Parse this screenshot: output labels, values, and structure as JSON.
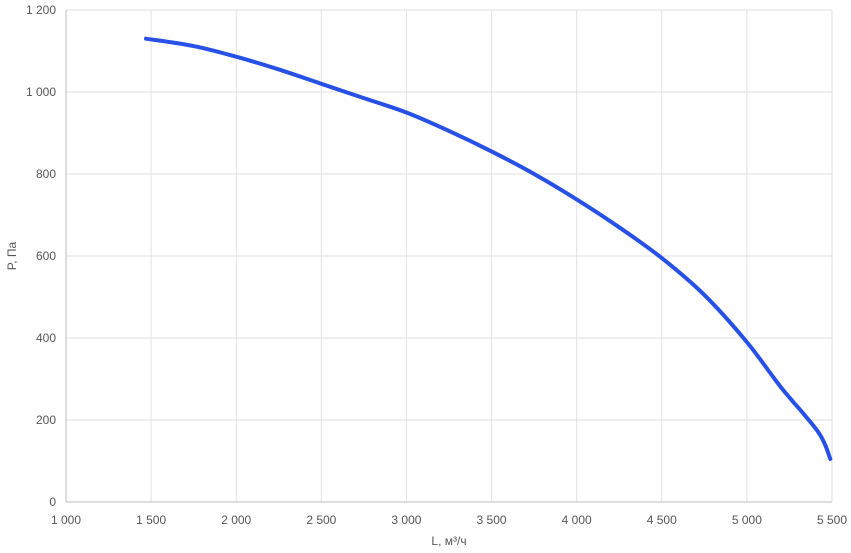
{
  "chart_data": {
    "type": "line",
    "title": "",
    "xlabel": "L, м³/ч",
    "ylabel": "P, Па",
    "xlim": [
      1000,
      5500
    ],
    "ylim": [
      0,
      1200
    ],
    "grid": true,
    "x_ticks": [
      {
        "value": 1000,
        "label": "1 000"
      },
      {
        "value": 1500,
        "label": "1 500"
      },
      {
        "value": 2000,
        "label": "2 000"
      },
      {
        "value": 2500,
        "label": "2 500"
      },
      {
        "value": 3000,
        "label": "3 000"
      },
      {
        "value": 3500,
        "label": "3 500"
      },
      {
        "value": 4000,
        "label": "4 000"
      },
      {
        "value": 4500,
        "label": "4 500"
      },
      {
        "value": 5000,
        "label": "5 000"
      },
      {
        "value": 5500,
        "label": "5 500"
      }
    ],
    "y_ticks": [
      {
        "value": 0,
        "label": "0"
      },
      {
        "value": 200,
        "label": "200"
      },
      {
        "value": 400,
        "label": "400"
      },
      {
        "value": 600,
        "label": "600"
      },
      {
        "value": 800,
        "label": "800"
      },
      {
        "value": 1000,
        "label": "1 000"
      },
      {
        "value": 1200,
        "label": "1 200"
      }
    ],
    "series": [
      {
        "color": "#2650e6",
        "x": [
          1470,
          1750,
          2000,
          2250,
          2500,
          2750,
          3000,
          3250,
          3500,
          3750,
          4000,
          4250,
          4500,
          4750,
          5000,
          5200,
          5420,
          5490
        ],
        "y": [
          1130,
          1112,
          1086,
          1055,
          1020,
          985,
          950,
          905,
          855,
          800,
          738,
          670,
          595,
          505,
          390,
          280,
          170,
          105
        ]
      }
    ]
  }
}
